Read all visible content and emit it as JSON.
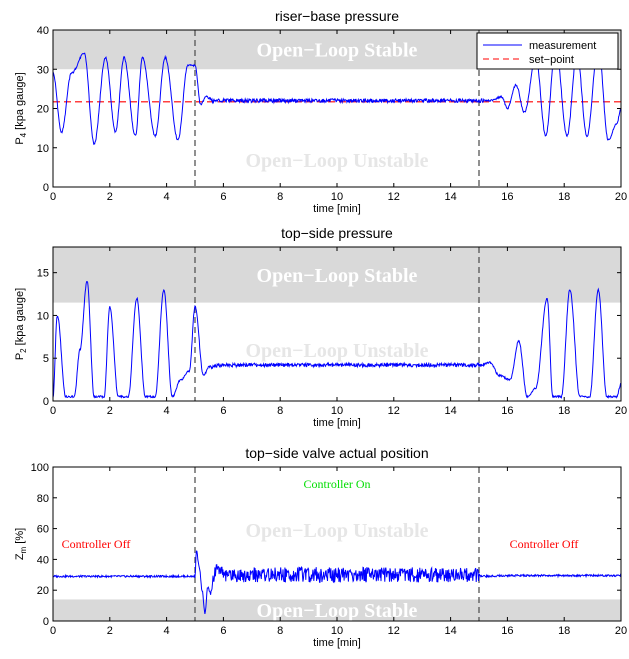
{
  "colors": {
    "measurement": "#0000ff",
    "setpoint": "#ff0000",
    "stable_band": "#d9d9d9",
    "controller_off": "#ff0000",
    "controller_on": "#00dd00"
  },
  "chart_data": [
    {
      "type": "line",
      "title": "riser−base pressure",
      "xlabel": "time [min]",
      "ylabel": "P",
      "ylabel_sub": "4",
      "ylabel_unit": " [kpa gauge]",
      "xlim": [
        0,
        20
      ],
      "ylim": [
        0,
        40
      ],
      "xticks": [
        "0",
        "2",
        "4",
        "6",
        "8",
        "10",
        "12",
        "14",
        "16",
        "18",
        "20"
      ],
      "yticks": [
        "0",
        "10",
        "20",
        "30",
        "40"
      ],
      "stable_band": [
        30,
        40
      ],
      "region_labels": {
        "stable": "Open−Loop Stable",
        "unstable": "Open−Loop Unstable"
      },
      "vlines": [
        5,
        15
      ],
      "legend": {
        "position": "top-right",
        "entries": [
          "measurement",
          "set−point"
        ]
      },
      "setpoint": 21.7,
      "series": [
        {
          "name": "measurement",
          "x": [
            0,
            0.3,
            0.65,
            1.1,
            1.45,
            1.85,
            2.2,
            2.5,
            2.9,
            3.15,
            3.6,
            3.95,
            4.4,
            4.75,
            5.0,
            5.2,
            5.4,
            5.6,
            6,
            7,
            8,
            9,
            10,
            11,
            12,
            13,
            14,
            15,
            15.4,
            15.8,
            16.0,
            16.3,
            16.6,
            17.0,
            17.35,
            17.7,
            18.1,
            18.45,
            18.8,
            19.2,
            19.55,
            19.85,
            20
          ],
          "y": [
            29,
            14,
            29,
            34,
            11,
            33,
            14,
            33,
            13,
            33,
            13,
            33,
            12,
            31,
            31,
            21,
            23,
            22,
            22,
            22,
            22,
            22,
            22,
            22,
            22,
            22,
            22,
            22,
            22,
            23,
            20,
            26,
            19,
            33,
            13,
            36,
            13,
            34,
            13,
            36,
            12,
            16,
            20
          ]
        },
        {
          "name": "set−point",
          "x": [
            0,
            20
          ],
          "y": [
            21.7,
            21.7
          ]
        }
      ]
    },
    {
      "type": "line",
      "title": "top−side pressure",
      "xlabel": "time [min]",
      "ylabel": "P",
      "ylabel_sub": "2",
      "ylabel_unit": " [kpa gauge]",
      "xlim": [
        0,
        20
      ],
      "ylim": [
        0,
        18
      ],
      "xticks": [
        "0",
        "2",
        "4",
        "6",
        "8",
        "10",
        "12",
        "14",
        "16",
        "18",
        "20"
      ],
      "yticks": [
        "0",
        "5",
        "10",
        "15"
      ],
      "stable_band": [
        11.5,
        18
      ],
      "region_labels": {
        "stable": "Open−Loop Stable",
        "unstable": "Open−Loop Unstable"
      },
      "vlines": [
        5,
        15
      ],
      "series": [
        {
          "name": "measurement",
          "x": [
            0,
            0.15,
            0.45,
            0.75,
            0.95,
            1.2,
            1.45,
            1.8,
            2.0,
            2.3,
            2.65,
            2.95,
            3.25,
            3.6,
            3.9,
            4.2,
            4.5,
            4.8,
            5.0,
            5.3,
            5.5,
            6,
            8,
            10,
            12,
            14,
            15,
            15.4,
            15.7,
            16.1,
            16.4,
            16.7,
            17.0,
            17.4,
            17.6,
            17.9,
            18.2,
            18.55,
            18.9,
            19.2,
            19.5,
            19.85,
            20
          ],
          "y": [
            0.5,
            10,
            0.5,
            0.5,
            6,
            14,
            0.5,
            0.5,
            11,
            0.5,
            0.5,
            12,
            0.5,
            0.5,
            13,
            0.5,
            2.5,
            3.5,
            11,
            3,
            4,
            4.2,
            4.2,
            4.2,
            4.2,
            4.2,
            4.2,
            4.5,
            3,
            2.5,
            7,
            0.5,
            1.5,
            12,
            0.5,
            0.5,
            13,
            0.5,
            0.5,
            13,
            0.5,
            0.5,
            2
          ]
        }
      ]
    },
    {
      "type": "line",
      "title": "top−side valve actual position",
      "xlabel": "time [min]",
      "ylabel": "Z",
      "ylabel_sub": "m",
      "ylabel_unit": " [%]",
      "xlim": [
        0,
        20
      ],
      "ylim": [
        0,
        100
      ],
      "xticks": [
        "0",
        "2",
        "4",
        "6",
        "8",
        "10",
        "12",
        "14",
        "16",
        "18",
        "20"
      ],
      "yticks": [
        "0",
        "20",
        "40",
        "60",
        "80",
        "100"
      ],
      "stable_band": [
        0,
        14
      ],
      "region_labels": {
        "stable": "Open−Loop Stable",
        "unstable": "Open−Loop Unstable"
      },
      "vlines": [
        5,
        15
      ],
      "annotations": {
        "off_left": "Controller Off",
        "on": "Controller On",
        "off_right": "Controller Off"
      },
      "series": [
        {
          "name": "measurement",
          "x": [
            0,
            5.0,
            5.05,
            5.15,
            5.25,
            5.35,
            5.45,
            5.55,
            5.7,
            6,
            7,
            8,
            9,
            10,
            11,
            12,
            13,
            14,
            15,
            15.1,
            16,
            17,
            18,
            19,
            20
          ],
          "y": [
            29,
            29,
            46,
            35,
            20,
            5,
            22,
            18,
            32,
            30,
            30,
            30,
            30,
            30,
            30,
            30,
            30,
            30,
            30,
            29,
            29.5,
            29.5,
            29.5,
            29.5,
            29.5
          ]
        }
      ]
    }
  ]
}
